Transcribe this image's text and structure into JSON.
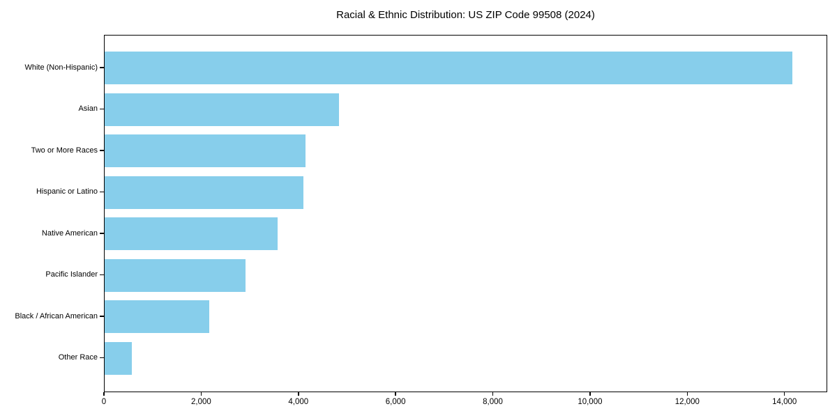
{
  "title": "Racial & Ethnic Distribution: US ZIP Code 99508 (2024)",
  "colors": {
    "bar": "#87CEEB",
    "axis": "#000000",
    "background": "#FFFFFF",
    "text": "#000000"
  },
  "chart_data": {
    "type": "bar",
    "orientation": "horizontal",
    "title": "Racial & Ethnic Distribution: US ZIP Code 99508 (2024)",
    "categories": [
      "White (Non-Hispanic)",
      "Asian",
      "Two or More Races",
      "Hispanic or Latino",
      "Native American",
      "Pacific Islander",
      "Black / African American",
      "Other Race"
    ],
    "values": [
      14170,
      4825,
      4145,
      4100,
      3565,
      2910,
      2155,
      565
    ],
    "xlabel": "",
    "ylabel": "",
    "xlim": [
      0,
      14880
    ],
    "x_ticks": [
      0,
      2000,
      4000,
      6000,
      8000,
      10000,
      12000,
      14000
    ],
    "x_tick_labels": [
      "0",
      "2,000",
      "4,000",
      "6,000",
      "8,000",
      "10,000",
      "12,000",
      "14,000"
    ],
    "grid": false,
    "legend": null,
    "bar_color": "#87CEEB",
    "bar_order": "descending, largest at top"
  }
}
